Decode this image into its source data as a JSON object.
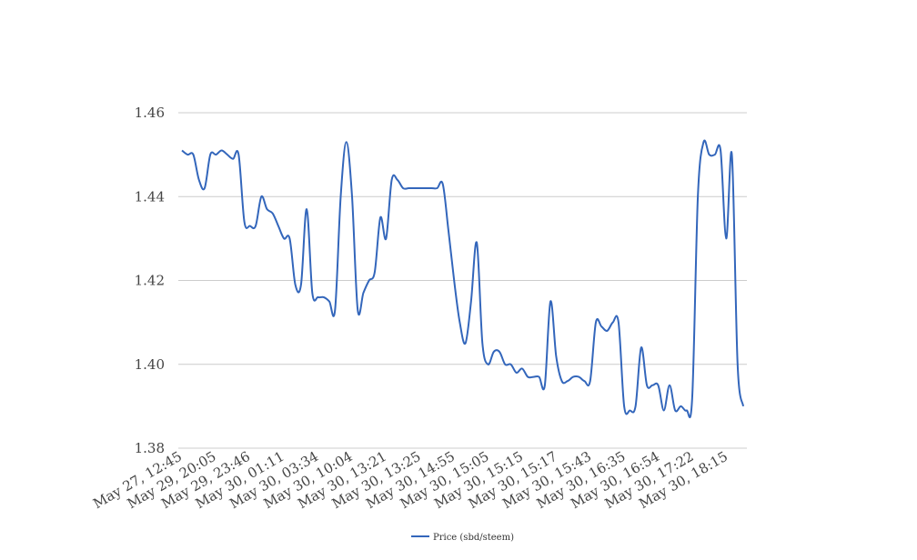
{
  "chart_data": {
    "type": "line",
    "title": "",
    "xlabel": "",
    "ylabel": "",
    "ylim": [
      1.38,
      1.46
    ],
    "yticks": [
      "1.38",
      "1.40",
      "1.42",
      "1.44",
      "1.46"
    ],
    "grid": true,
    "legend_position": "bottom-center",
    "x_tick_labels": [
      "May 27, 12:45",
      "May 29, 20:05",
      "May 29, 23:46",
      "May 30, 01:11",
      "May 30, 03:34",
      "May 30, 10:04",
      "May 30, 13:21",
      "May 30, 13:25",
      "May 30, 14:55",
      "May 30, 15:05",
      "May 30, 15:15",
      "May 30, 15:17",
      "May 30, 15:43",
      "May 30, 16:35",
      "May 30, 16:54",
      "May 30, 17:22",
      "May 30, 18:15"
    ],
    "series": [
      {
        "name": "Price (sbd/steem)",
        "color": "#3366bb",
        "values": [
          1.451,
          1.45,
          1.45,
          1.444,
          1.442,
          1.45,
          1.45,
          1.451,
          1.45,
          1.449,
          1.45,
          1.434,
          1.433,
          1.433,
          1.44,
          1.437,
          1.436,
          1.433,
          1.43,
          1.43,
          1.419,
          1.419,
          1.437,
          1.417,
          1.416,
          1.416,
          1.415,
          1.413,
          1.44,
          1.453,
          1.44,
          1.413,
          1.417,
          1.42,
          1.422,
          1.435,
          1.43,
          1.444,
          1.444,
          1.442,
          1.442,
          1.442,
          1.442,
          1.442,
          1.442,
          1.442,
          1.443,
          1.432,
          1.42,
          1.41,
          1.405,
          1.415,
          1.429,
          1.405,
          1.4,
          1.403,
          1.403,
          1.4,
          1.4,
          1.398,
          1.399,
          1.397,
          1.397,
          1.397,
          1.395,
          1.415,
          1.402,
          1.396,
          1.396,
          1.397,
          1.397,
          1.396,
          1.396,
          1.41,
          1.409,
          1.408,
          1.41,
          1.41,
          1.39,
          1.389,
          1.39,
          1.404,
          1.395,
          1.395,
          1.395,
          1.389,
          1.395,
          1.389,
          1.39,
          1.389,
          1.392,
          1.44,
          1.453,
          1.45,
          1.45,
          1.451,
          1.43,
          1.45,
          1.4,
          1.39
        ]
      }
    ]
  }
}
